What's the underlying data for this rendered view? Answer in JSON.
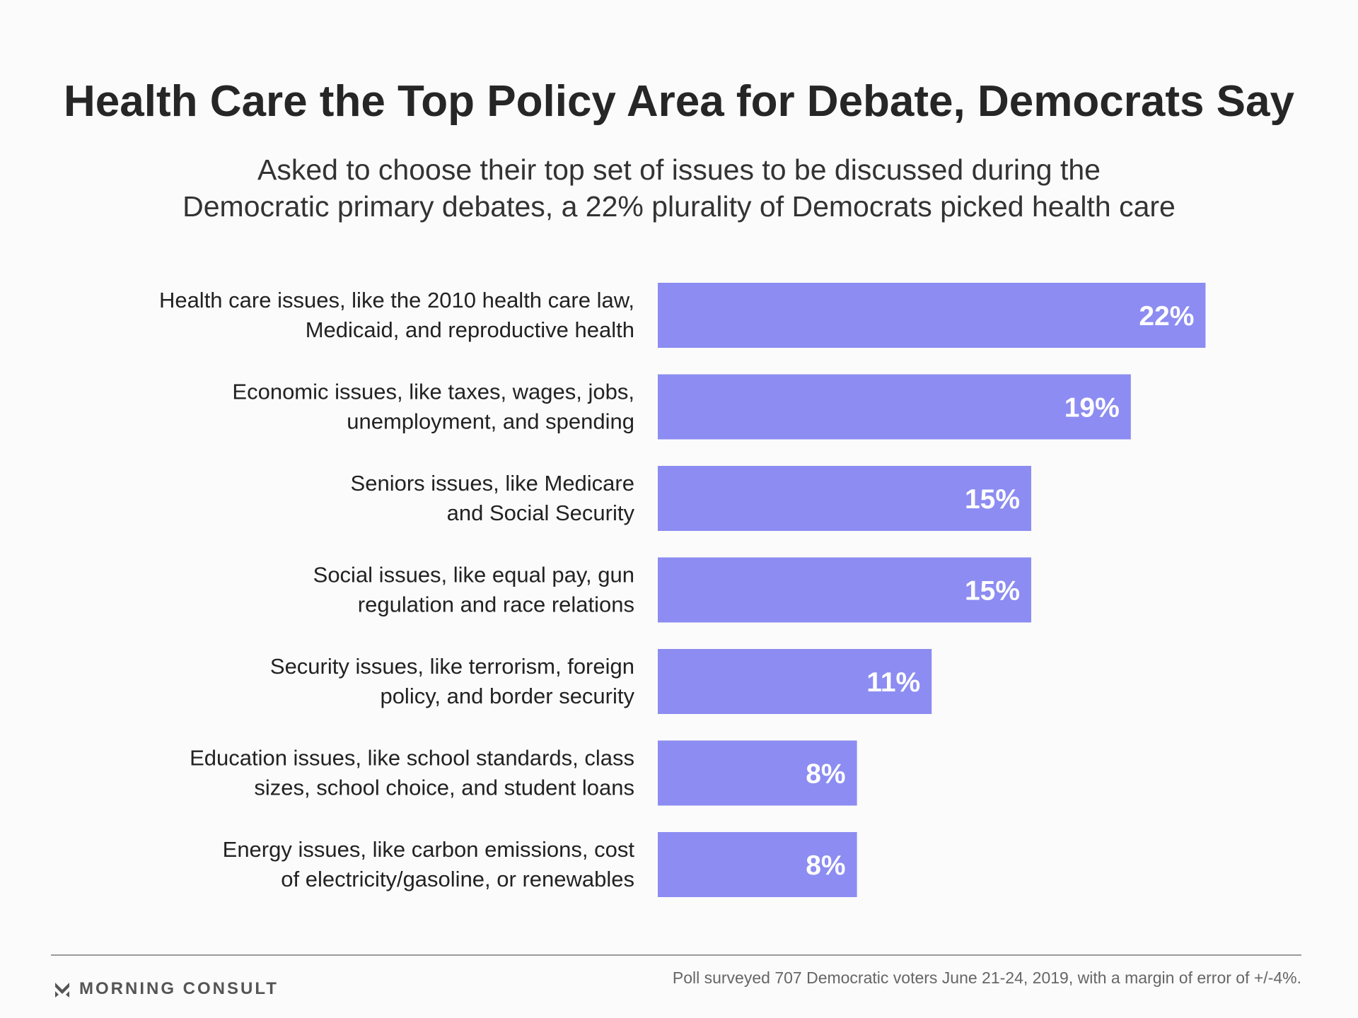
{
  "chart_data": {
    "type": "bar",
    "orientation": "horizontal",
    "title": "Health Care the Top Policy Area for Debate, Democrats Say",
    "subtitle": [
      "Asked to choose their top set of issues to be discussed during the",
      "Democratic primary debates, a 22% plurality of Democrats picked health care"
    ],
    "categories": [
      [
        "Health care issues, like the 2010 health care law,",
        "Medicaid, and reproductive health"
      ],
      [
        "Economic issues, like taxes, wages, jobs,",
        "unemployment, and spending"
      ],
      [
        "Seniors issues, like Medicare",
        "and Social Security"
      ],
      [
        "Social issues, like equal pay, gun",
        "regulation and race relations"
      ],
      [
        "Security issues, like terrorism, foreign",
        "policy, and border security"
      ],
      [
        "Education issues, like school standards, class",
        "sizes, school choice, and student loans"
      ],
      [
        "Energy issues, like carbon emissions, cost",
        "of electricity/gasoline, or renewables"
      ]
    ],
    "values": [
      22,
      19,
      15,
      15,
      11,
      8,
      8
    ],
    "value_labels": [
      "22%",
      "19%",
      "15%",
      "15%",
      "11%",
      "8%",
      "8%"
    ],
    "unit": "%",
    "bar_color": "#8c8cf2",
    "value_label_color": "#ffffff",
    "grid": false,
    "legend": "none"
  },
  "footer": {
    "brand": "MORNING CONSULT",
    "brand_icon": "morning-consult-logo-icon",
    "note": "Poll surveyed 707 Democratic voters June 21-24, 2019, with a margin of error of +/-4%."
  }
}
